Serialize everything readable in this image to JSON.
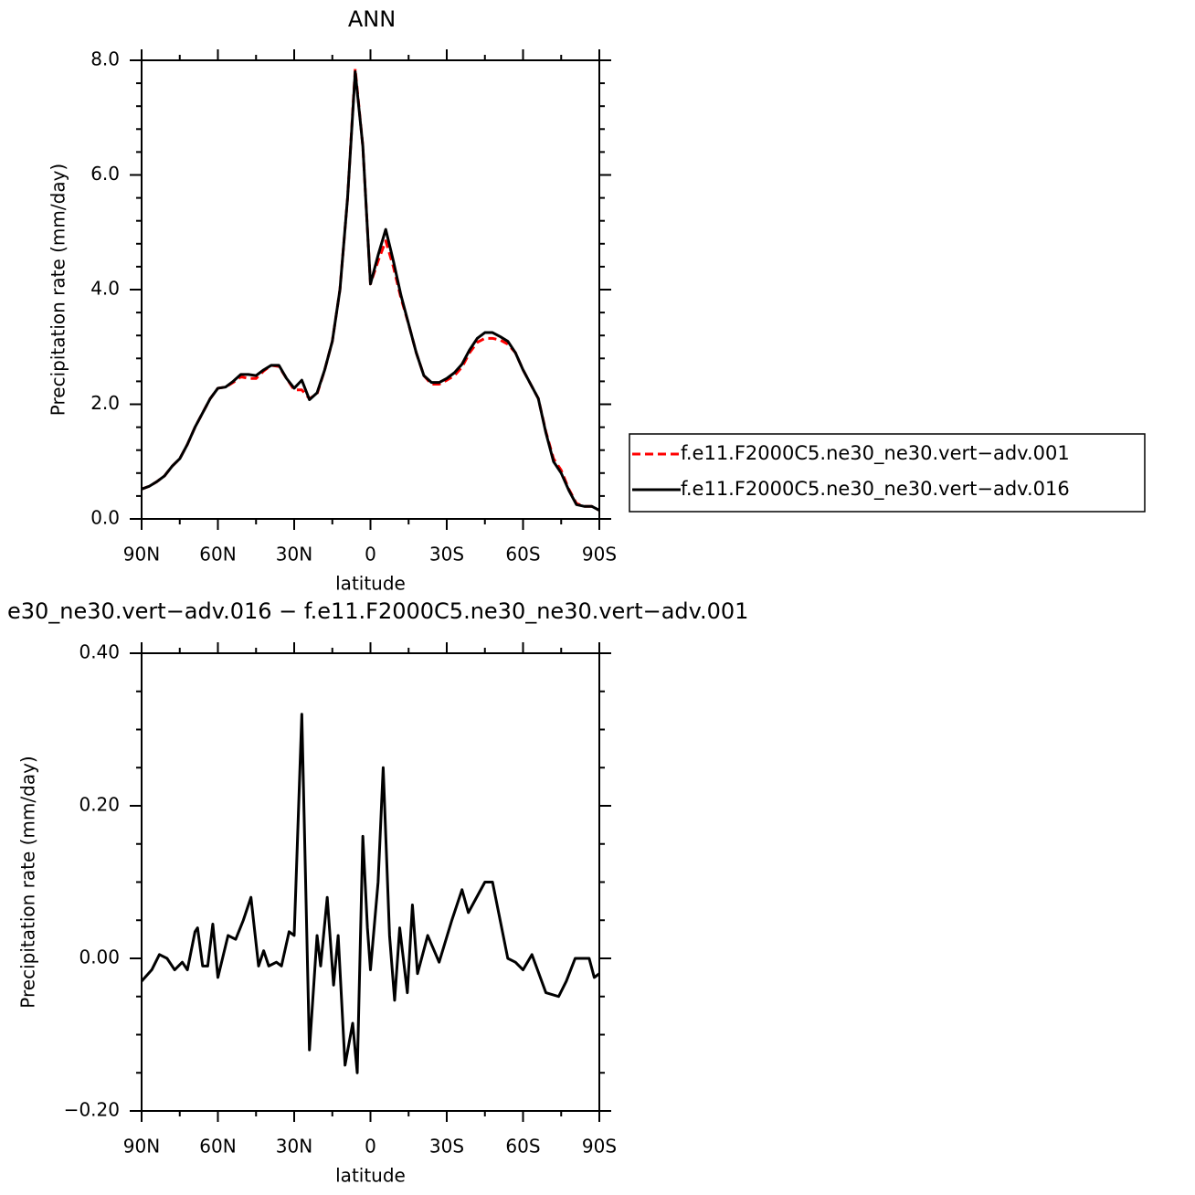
{
  "chart_data": [
    {
      "type": "line",
      "title": "ANN",
      "xlabel": "latitude",
      "ylabel": "Precipitation rate (mm/day)",
      "x": [
        90,
        87,
        84,
        81,
        78,
        75,
        72,
        69,
        66,
        63,
        60,
        57,
        54,
        51,
        48,
        45,
        42,
        39,
        36,
        33,
        30,
        27,
        24,
        21,
        18,
        15,
        12,
        9,
        6,
        3,
        0,
        -3,
        -6,
        -9,
        -12,
        -15,
        -18,
        -21,
        -24,
        -27,
        -30,
        -33,
        -36,
        -39,
        -42,
        -45,
        -48,
        -51,
        -54,
        -57,
        -60,
        -63,
        -66,
        -69,
        -72,
        -75,
        -78,
        -81,
        -84,
        -87,
        -90
      ],
      "series": [
        {
          "name": "f.e11.F2000C5.ne30_ne30.vert−adv.001",
          "color": "#ff0000",
          "line_style": "dashed",
          "values": [
            0.52,
            0.57,
            0.65,
            0.75,
            0.92,
            1.05,
            1.3,
            1.6,
            1.85,
            2.1,
            2.28,
            2.3,
            2.38,
            2.48,
            2.45,
            2.45,
            2.58,
            2.68,
            2.66,
            2.45,
            2.25,
            2.25,
            2.1,
            2.18,
            2.6,
            3.1,
            4.0,
            5.6,
            7.85,
            6.5,
            4.1,
            4.5,
            4.85,
            4.4,
            3.85,
            3.4,
            2.9,
            2.5,
            2.35,
            2.35,
            2.42,
            2.5,
            2.65,
            2.9,
            3.08,
            3.15,
            3.15,
            3.12,
            3.05,
            2.9,
            2.6,
            2.35,
            2.1,
            1.52,
            1.05,
            0.85,
            0.52,
            0.27,
            0.22,
            0.22,
            0.15
          ]
        },
        {
          "name": "f.e11.F2000C5.ne30_ne30.vert−adv.016",
          "color": "#000000",
          "line_style": "solid",
          "values": [
            0.52,
            0.57,
            0.65,
            0.75,
            0.92,
            1.05,
            1.3,
            1.6,
            1.85,
            2.1,
            2.28,
            2.3,
            2.4,
            2.52,
            2.52,
            2.5,
            2.6,
            2.68,
            2.68,
            2.45,
            2.28,
            2.42,
            2.08,
            2.2,
            2.6,
            3.1,
            4.0,
            5.6,
            7.8,
            6.5,
            4.1,
            4.6,
            5.05,
            4.5,
            3.9,
            3.4,
            2.9,
            2.5,
            2.38,
            2.38,
            2.45,
            2.55,
            2.7,
            2.95,
            3.15,
            3.25,
            3.25,
            3.18,
            3.1,
            2.9,
            2.6,
            2.35,
            2.1,
            1.5,
            1.0,
            0.8,
            0.5,
            0.25,
            0.22,
            0.22,
            0.15
          ]
        }
      ],
      "xlim": [
        90,
        -90
      ],
      "xticks": [
        {
          "value": 90,
          "label": "90N"
        },
        {
          "value": 60,
          "label": "60N"
        },
        {
          "value": 30,
          "label": "30N"
        },
        0,
        {
          "value": -30,
          "label": "30S"
        },
        {
          "value": -60,
          "label": "60S"
        },
        {
          "value": -90,
          "label": "90S"
        }
      ],
      "xminorticks": [
        75,
        45,
        15,
        -15,
        -45,
        -75
      ],
      "ylim": [
        0,
        8
      ],
      "yticks": [
        {
          "value": 0,
          "label": "0.0"
        },
        {
          "value": 2,
          "label": "2.0"
        },
        {
          "value": 4,
          "label": "4.0"
        },
        {
          "value": 6,
          "label": "6.0"
        },
        {
          "value": 8,
          "label": "8.0"
        }
      ],
      "yminorticks": [
        0.4,
        0.8,
        1.2,
        1.6,
        2.4,
        2.8,
        3.2,
        3.6,
        4.4,
        4.8,
        5.2,
        5.6,
        6.4,
        6.8,
        7.2,
        7.6
      ],
      "legend": "right"
    },
    {
      "type": "line",
      "title": "e30_ne30.vert−adv.016 − f.e11.F2000C5.ne30_ne30.vert−adv.001",
      "xlabel": "latitude",
      "ylabel": "Precipitation rate (mm/day)",
      "x": [
        90,
        86,
        83,
        80,
        77,
        74,
        72,
        69,
        68,
        66,
        64,
        62,
        60,
        56,
        53,
        50,
        47,
        44,
        42,
        40,
        37,
        35,
        32,
        30,
        27,
        24,
        21,
        19.6,
        17,
        14.5,
        12.7,
        10,
        7,
        5.2,
        3,
        1.2,
        0,
        -3,
        -5,
        -7.5,
        -9.5,
        -11.5,
        -14.5,
        -16.5,
        -18.5,
        -22.5,
        -27,
        -32,
        -36,
        -38.5,
        -45,
        -48,
        -54,
        -57,
        -60,
        -63.5,
        -69,
        -74,
        -77,
        -80.5,
        -86,
        -88,
        -90
      ],
      "values": [
        -0.03,
        -0.015,
        0.005,
        0.0,
        -0.015,
        -0.005,
        -0.015,
        0.035,
        0.04,
        -0.01,
        -0.01,
        0.045,
        -0.025,
        0.03,
        0.025,
        0.05,
        0.08,
        -0.01,
        0.01,
        -0.01,
        -0.005,
        -0.01,
        0.035,
        0.03,
        0.32,
        -0.12,
        0.03,
        -0.01,
        0.08,
        -0.035,
        0.03,
        -0.14,
        -0.085,
        -0.15,
        0.16,
        0.04,
        -0.015,
        0.1,
        0.25,
        0.03,
        -0.055,
        0.04,
        -0.045,
        0.07,
        -0.02,
        0.03,
        -0.005,
        0.05,
        0.09,
        0.06,
        0.1,
        0.1,
        0.0,
        -0.005,
        -0.015,
        0.005,
        -0.045,
        -0.05,
        -0.03,
        0.0,
        0.0,
        -0.025,
        -0.02
      ],
      "color": "#000000",
      "xlim": [
        90,
        -90
      ],
      "xticks": [
        {
          "value": 90,
          "label": "90N"
        },
        {
          "value": 60,
          "label": "60N"
        },
        {
          "value": 30,
          "label": "30N"
        },
        0,
        {
          "value": -30,
          "label": "30S"
        },
        {
          "value": -60,
          "label": "60S"
        },
        {
          "value": -90,
          "label": "90S"
        }
      ],
      "xminorticks": [
        75,
        45,
        15,
        -15,
        -45,
        -75
      ],
      "ylim": [
        -0.2,
        0.4
      ],
      "yticks": [
        {
          "value": -0.2,
          "label": "−0.20"
        },
        {
          "value": 0,
          "label": "0.00"
        },
        {
          "value": 0.2,
          "label": "0.20"
        },
        {
          "value": 0.4,
          "label": "0.40"
        }
      ],
      "yminorticks": [
        -0.15,
        -0.1,
        -0.05,
        0.05,
        0.1,
        0.15,
        0.25,
        0.3,
        0.35
      ]
    }
  ]
}
